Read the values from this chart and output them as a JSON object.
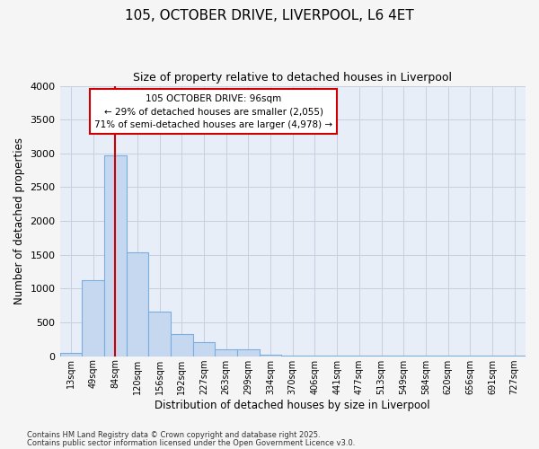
{
  "title1": "105, OCTOBER DRIVE, LIVERPOOL, L6 4ET",
  "title2": "Size of property relative to detached houses in Liverpool",
  "xlabel": "Distribution of detached houses by size in Liverpool",
  "ylabel": "Number of detached properties",
  "bar_color": "#c5d8f0",
  "bar_edge_color": "#7aade0",
  "plot_bg_color": "#e8eef8",
  "fig_bg_color": "#f5f5f5",
  "categories": [
    "13sqm",
    "49sqm",
    "84sqm",
    "120sqm",
    "156sqm",
    "192sqm",
    "227sqm",
    "263sqm",
    "299sqm",
    "334sqm",
    "370sqm",
    "406sqm",
    "441sqm",
    "477sqm",
    "513sqm",
    "549sqm",
    "584sqm",
    "620sqm",
    "656sqm",
    "691sqm",
    "727sqm"
  ],
  "values": [
    55,
    1120,
    2975,
    1530,
    660,
    330,
    205,
    100,
    100,
    20,
    10,
    10,
    5,
    5,
    5,
    5,
    5,
    5,
    5,
    5,
    5
  ],
  "ylim": [
    0,
    4000
  ],
  "yticks": [
    0,
    500,
    1000,
    1500,
    2000,
    2500,
    3000,
    3500,
    4000
  ],
  "property_line_x": 2.0,
  "property_line_color": "#cc0000",
  "annotation_text": "105 OCTOBER DRIVE: 96sqm\n← 29% of detached houses are smaller (2,055)\n71% of semi-detached houses are larger (4,978) →",
  "annotation_box_color": "#cc0000",
  "annotation_box_face": "#ffffff",
  "footnote1": "Contains HM Land Registry data © Crown copyright and database right 2025.",
  "footnote2": "Contains public sector information licensed under the Open Government Licence v3.0.",
  "grid_color": "#c8d0e0"
}
